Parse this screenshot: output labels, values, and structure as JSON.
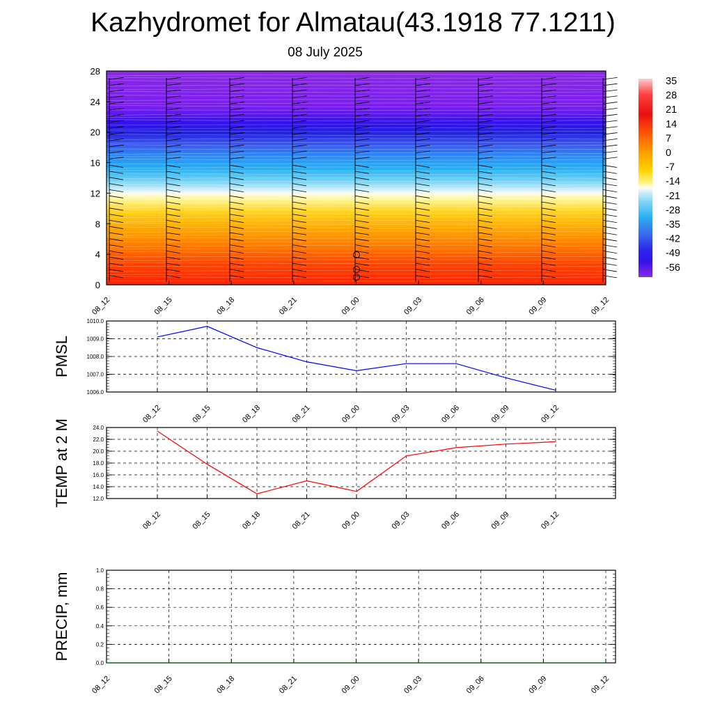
{
  "title": "Kazhydromet for Almatau(43.1918 77.1211)",
  "subtitle": "08 July 2025",
  "colors": {
    "pmsl_line": "#0000ff",
    "temp_line": "#ff0000",
    "precip_line": "#006400",
    "grid": "#000000"
  },
  "chart_data": [
    {
      "type": "heatmap",
      "name": "vertical-temperature-cross-section",
      "x_tick_labels": [
        "08_12",
        "08_15",
        "08_18",
        "08_21",
        "09_00",
        "09_03",
        "09_06",
        "09_09",
        "09_12"
      ],
      "y_tick_labels": [
        "0",
        "4",
        "8",
        "12",
        "16",
        "20",
        "24",
        "28"
      ],
      "ylim": [
        0,
        28
      ],
      "colorbar_labels": [
        "35",
        "28",
        "21",
        "14",
        "7",
        "0",
        "-7",
        "-14",
        "-21",
        "-28",
        "-35",
        "-42",
        "-49",
        "-56"
      ],
      "overlays": [
        "wind barbs"
      ]
    },
    {
      "type": "line",
      "name": "PMSL",
      "ylabel": "PMSL",
      "x_tick_labels": [
        "08_12",
        "08_15",
        "08_18",
        "08_21",
        "09_00",
        "09_03",
        "09_06",
        "09_09",
        "09_12"
      ],
      "y_tick_labels": [
        "1006.0",
        "1007.0",
        "1008.0",
        "1009.0",
        "1010.0"
      ],
      "ylim": [
        1006.0,
        1010.0
      ],
      "values": [
        1009.1,
        1009.7,
        1008.5,
        1007.7,
        1007.2,
        1007.6,
        1007.6,
        1006.8,
        1006.1
      ]
    },
    {
      "type": "line",
      "name": "TEMP at 2 M",
      "ylabel": "TEMP at 2 M",
      "x_tick_labels": [
        "08_12",
        "08_15",
        "08_18",
        "08_21",
        "09_00",
        "09_03",
        "09_06",
        "09_09",
        "09_12"
      ],
      "y_tick_labels": [
        "12.0",
        "14.0",
        "16.0",
        "18.0",
        "20.0",
        "22.0",
        "24.0"
      ],
      "ylim": [
        12.0,
        24.0
      ],
      "values": [
        23.4,
        17.8,
        12.8,
        15.0,
        13.2,
        19.2,
        20.6,
        21.2,
        21.6
      ]
    },
    {
      "type": "line",
      "name": "PRECIP, mm",
      "ylabel": "PRECIP, mm",
      "x_tick_labels": [
        "08_12",
        "08_15",
        "08_18",
        "08_21",
        "09_00",
        "09_03",
        "09_06",
        "09_09",
        "09_12"
      ],
      "y_tick_labels": [
        "0.0",
        "0.2",
        "0.4",
        "0.6",
        "0.8",
        "1.0"
      ],
      "ylim": [
        0.0,
        1.0
      ],
      "values": [
        0,
        0,
        0,
        0,
        0,
        0,
        0,
        0,
        0
      ]
    }
  ]
}
